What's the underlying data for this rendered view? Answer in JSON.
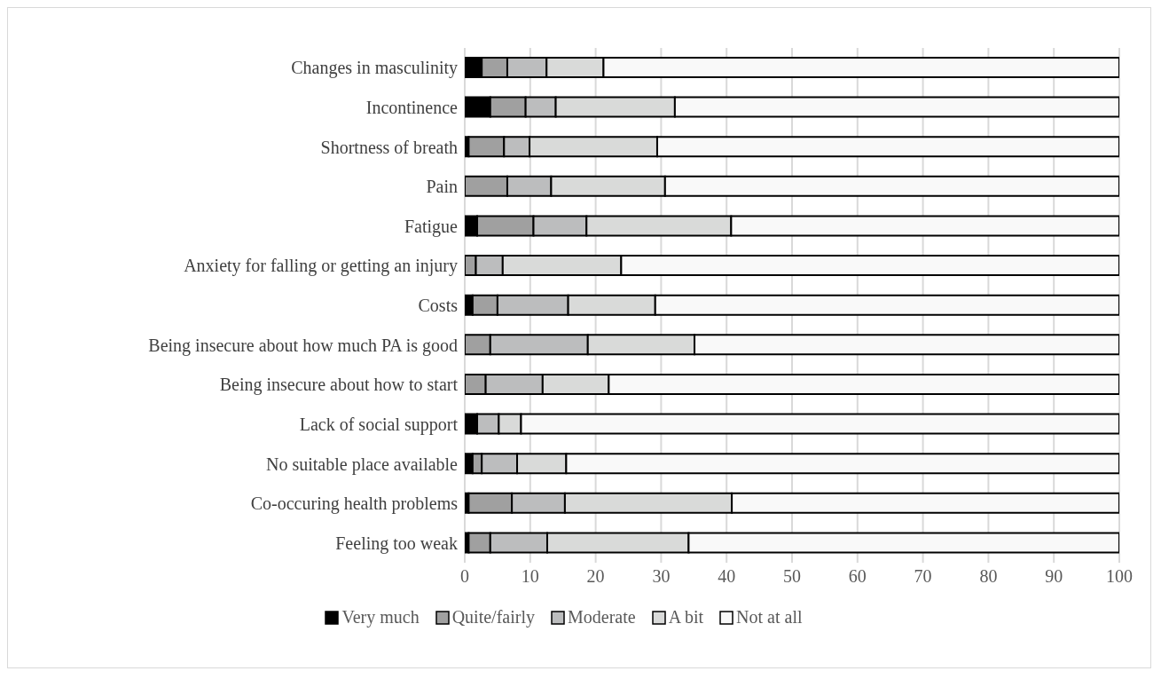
{
  "chart_data": {
    "type": "bar",
    "orientation": "horizontal",
    "stacked": true,
    "categories": [
      "Changes in masculinity",
      "Incontinence",
      "Shortness of breath",
      "Pain",
      "Fatigue",
      "Anxiety for falling or getting an injury",
      "Costs",
      "Being insecure about how much PA is good",
      "Being insecure about how to start",
      "Lack of social support",
      "No suitable place available",
      "Co-occuring health problems",
      "Feeling too weak"
    ],
    "series": [
      {
        "name": "Very much",
        "color": "#000000",
        "values": [
          2.6,
          3.9,
          0.6,
          0,
          1.9,
          0,
          1.2,
          0,
          0,
          1.9,
          1.2,
          0.6,
          0.6
        ]
      },
      {
        "name": "Quite/fairly",
        "color": "#a0a0a0",
        "values": [
          3.9,
          5.4,
          5.4,
          6.5,
          8.6,
          1.7,
          3.8,
          3.9,
          3.2,
          0,
          1.4,
          6.6,
          3.3
        ]
      },
      {
        "name": "Moderate",
        "color": "#bcbdbe",
        "values": [
          6.0,
          4.6,
          3.9,
          6.7,
          8.1,
          4.1,
          10.8,
          14.9,
          8.7,
          3.3,
          5.4,
          8.1,
          8.7
        ]
      },
      {
        "name": "A bit",
        "color": "#d9dad9",
        "values": [
          8.7,
          18.2,
          19.5,
          17.4,
          22.1,
          18.1,
          13.3,
          16.3,
          10.1,
          3.4,
          7.5,
          25.5,
          21.6
        ]
      },
      {
        "name": "Not at all",
        "color": "#f9f9f9",
        "values": [
          78.8,
          67.9,
          70.6,
          69.4,
          59.3,
          76.1,
          70.9,
          64.9,
          78.0,
          91.4,
          84.5,
          59.2,
          65.8
        ]
      }
    ],
    "xlim": [
      0,
      100
    ],
    "xticks": [
      0,
      10,
      20,
      30,
      40,
      50,
      60,
      70,
      80,
      90,
      100
    ],
    "grid": "x",
    "legend": "bottom"
  }
}
